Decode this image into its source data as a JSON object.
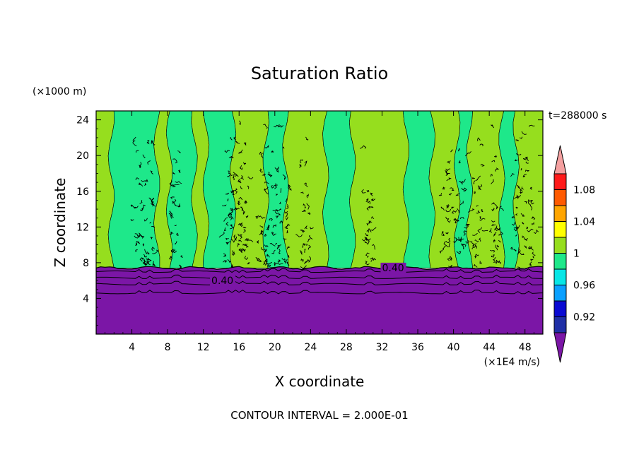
{
  "chart_data": {
    "type": "heatmap",
    "title": "Saturation Ratio",
    "xlabel": "X coordinate",
    "ylabel": "Z coordinate",
    "x_unit": "(×1E4 m/s)",
    "y_unit": "(×1000 m)",
    "time_label": "t=288000 s",
    "footer": "CONTOUR INTERVAL = 2.000E-01",
    "xlim": [
      0,
      50
    ],
    "ylim": [
      0,
      25
    ],
    "x_ticks": [
      4,
      8,
      12,
      16,
      20,
      24,
      28,
      32,
      36,
      40,
      44,
      48
    ],
    "y_ticks": [
      4,
      8,
      12,
      16,
      20,
      24
    ],
    "cloud_top_height": 7.4,
    "contour_lines": [
      {
        "z": 7.0,
        "label": ""
      },
      {
        "z": 6.3,
        "label": "0.40"
      },
      {
        "z": 5.6,
        "label": ""
      },
      {
        "z": 4.6,
        "label": ""
      }
    ],
    "contour_labels": [
      {
        "x": 12.9,
        "z": 5.6,
        "text": "0.40"
      },
      {
        "x": 32.0,
        "z": 7.05,
        "text": "0.40"
      }
    ],
    "colorbar": {
      "levels": [
        0.9,
        0.92,
        0.94,
        0.96,
        0.98,
        1.0,
        1.02,
        1.04,
        1.06,
        1.08,
        1.1
      ],
      "tick_labels": [
        "0.92",
        "0.96",
        "1",
        "1.04",
        "1.08"
      ],
      "colors": [
        "#7b16a6",
        "#1f2fa6",
        "#0a0ad2",
        "#0aa0ff",
        "#08e6e6",
        "#1ee88a",
        "#96de1e",
        "#ffff00",
        "#ffa500",
        "#ff5a00",
        "#ff1a1a",
        "#f4a0a0"
      ]
    },
    "column_bands": [
      {
        "x0": 0.0,
        "x1": 1.7,
        "color": "#96de1e"
      },
      {
        "x0": 1.7,
        "x1": 6.8,
        "color": "#1ee88a"
      },
      {
        "x0": 6.8,
        "x1": 8.2,
        "color": "#96de1e"
      },
      {
        "x0": 8.2,
        "x1": 11.0,
        "color": "#1ee88a"
      },
      {
        "x0": 11.0,
        "x1": 12.3,
        "color": "#96de1e"
      },
      {
        "x0": 12.3,
        "x1": 15.3,
        "color": "#1ee88a"
      },
      {
        "x0": 15.3,
        "x1": 19.0,
        "color": "#96de1e"
      },
      {
        "x0": 19.0,
        "x1": 21.2,
        "color": "#1ee88a"
      },
      {
        "x0": 21.2,
        "x1": 25.7,
        "color": "#96de1e"
      },
      {
        "x0": 25.7,
        "x1": 28.7,
        "color": "#1ee88a"
      },
      {
        "x0": 28.7,
        "x1": 34.7,
        "color": "#96de1e"
      },
      {
        "x0": 34.7,
        "x1": 37.6,
        "color": "#1ee88a"
      },
      {
        "x0": 37.6,
        "x1": 40.4,
        "color": "#96de1e"
      },
      {
        "x0": 40.4,
        "x1": 41.8,
        "color": "#1ee88a"
      },
      {
        "x0": 41.8,
        "x1": 45.4,
        "color": "#96de1e"
      },
      {
        "x0": 45.4,
        "x1": 47.0,
        "color": "#1ee88a"
      },
      {
        "x0": 47.0,
        "x1": 50.0,
        "color": "#96de1e"
      }
    ],
    "turbulent_columns": [
      4.8,
      6.0,
      9.0,
      14.8,
      15.6,
      16.5,
      18.7,
      19.8,
      21.0,
      23.4,
      30.5,
      39.2,
      40.8,
      42.6,
      44.8,
      47.2,
      48.4
    ]
  }
}
